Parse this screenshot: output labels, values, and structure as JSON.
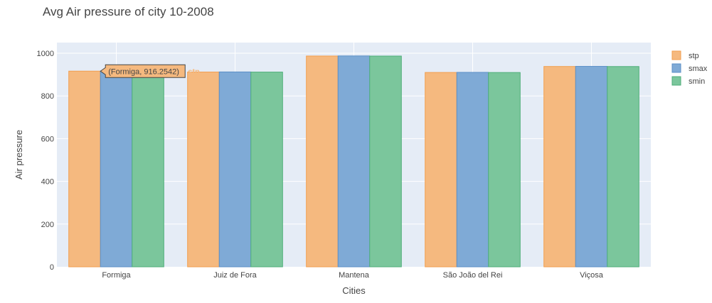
{
  "chart_data": {
    "type": "bar",
    "title": "Avg Air pressure of city 10-2008",
    "xlabel": "Cities",
    "ylabel": "Air pressure",
    "categories": [
      "Formiga",
      "Juiz de Fora",
      "Mantena",
      "São João del Rei",
      "Viçosa"
    ],
    "series": [
      {
        "name": "stp",
        "color": "#f5b97f",
        "stroke": "#f29e4f",
        "values": [
          916.2542,
          912,
          987,
          910,
          938
        ]
      },
      {
        "name": "smax",
        "color": "#7faad6",
        "stroke": "#5b8fc7",
        "values": [
          916.5,
          912.5,
          987.5,
          910.5,
          938.5
        ]
      },
      {
        "name": "smin",
        "color": "#7bc69c",
        "stroke": "#4fae7a",
        "values": [
          916,
          911.8,
          986.8,
          909.8,
          937.8
        ]
      }
    ],
    "ylim": [
      0,
      1050
    ],
    "yticks": [
      0,
      200,
      400,
      600,
      800,
      1000
    ],
    "grid": true,
    "legend_position": "top-right",
    "plot_bg": "#e5ecf6",
    "hover": {
      "text": "(Formiga, 916.2542)",
      "series_label": "stp"
    }
  }
}
